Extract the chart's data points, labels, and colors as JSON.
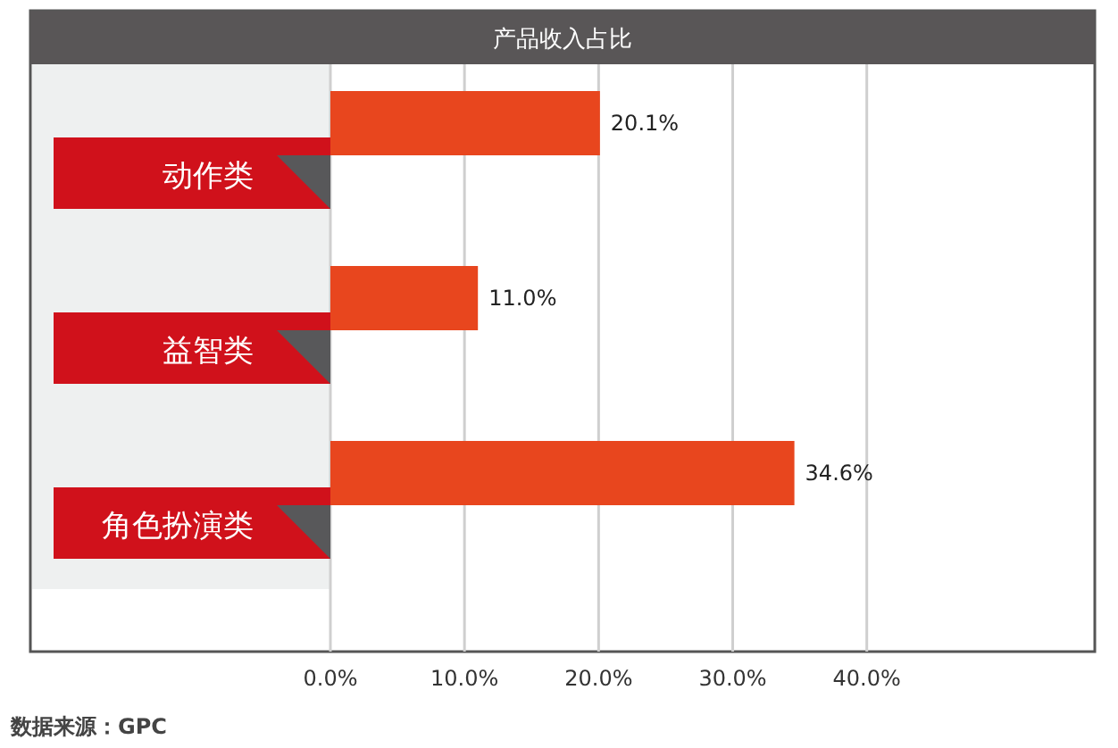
{
  "chart_data": {
    "type": "bar",
    "orientation": "horizontal",
    "title": "产品收入占比",
    "categories": [
      "动作类",
      "益智类",
      "角色扮演类"
    ],
    "values": [
      20.1,
      11.0,
      34.6
    ],
    "value_labels": [
      "20.1%",
      "11.0%",
      "34.6%"
    ],
    "color": "#e8461e",
    "xlim": [
      0,
      57
    ],
    "xticks": [
      {
        "value": 0,
        "label": "0.0%"
      },
      {
        "value": 10,
        "label": "10.0%"
      },
      {
        "value": 20,
        "label": "20.0%"
      },
      {
        "value": 30,
        "label": "30.0%"
      },
      {
        "value": 40,
        "label": "40.0%"
      }
    ],
    "grid": "x",
    "annotations": [
      "数据来源：GPC"
    ]
  }
}
